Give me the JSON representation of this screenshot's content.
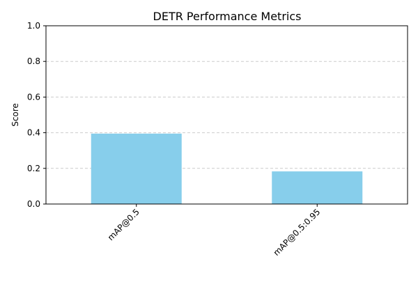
{
  "chart_data": {
    "type": "bar",
    "title": "DETR Performance Metrics",
    "xlabel": "",
    "ylabel": "Score",
    "categories": [
      "mAP@0.5",
      "mAP@0.5:0.95"
    ],
    "values": [
      0.395,
      0.183
    ],
    "ylim": [
      0,
      1.0
    ],
    "yticks": [
      "0.0",
      "0.2",
      "0.4",
      "0.6",
      "0.8",
      "1.0"
    ],
    "ytick_values": [
      0,
      0.2,
      0.4,
      0.6,
      0.8,
      1.0
    ],
    "grid": "y-dashed",
    "bar_color": "#87ceeb",
    "grid_color": "#cccccc"
  }
}
